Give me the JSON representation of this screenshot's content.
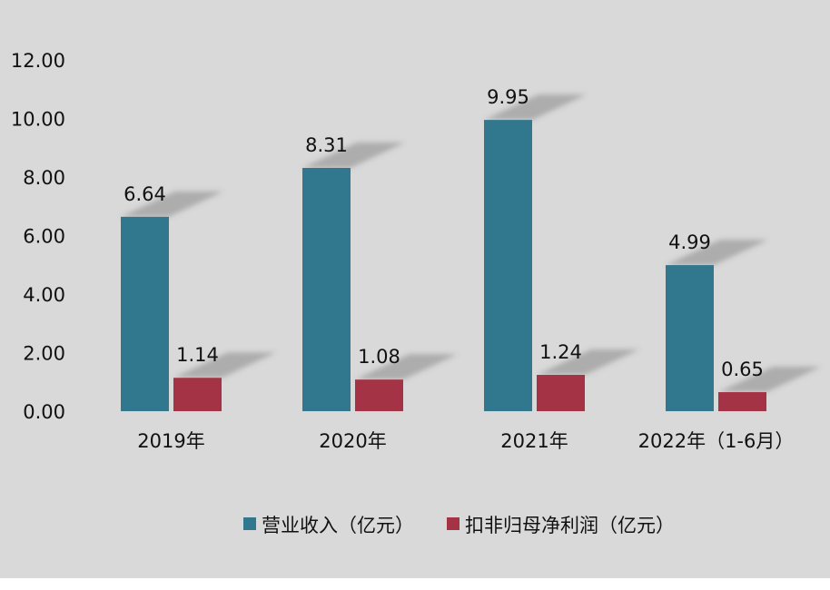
{
  "chart_data": {
    "type": "bar",
    "categories": [
      "2019年",
      "2020年",
      "2021年",
      "2022年（1-6月）"
    ],
    "series": [
      {
        "name": "营业收入（亿元）",
        "values": [
          6.64,
          8.31,
          9.95,
          4.99
        ],
        "labels": [
          "6.64",
          "8.31",
          "9.95",
          "4.99"
        ],
        "color": "#31778e"
      },
      {
        "name": "扣非归母净利润（亿元）",
        "values": [
          1.14,
          1.08,
          1.24,
          0.65
        ],
        "labels": [
          "1.14",
          "1.08",
          "1.24",
          "0.65"
        ],
        "color": "#a43445"
      }
    ],
    "yticks": [
      "0.00",
      "2.00",
      "4.00",
      "6.00",
      "8.00",
      "10.00",
      "12.00"
    ],
    "ylim": [
      0,
      12
    ],
    "legend_position": "bottom",
    "grid": false,
    "background": "#d9d9d9"
  }
}
